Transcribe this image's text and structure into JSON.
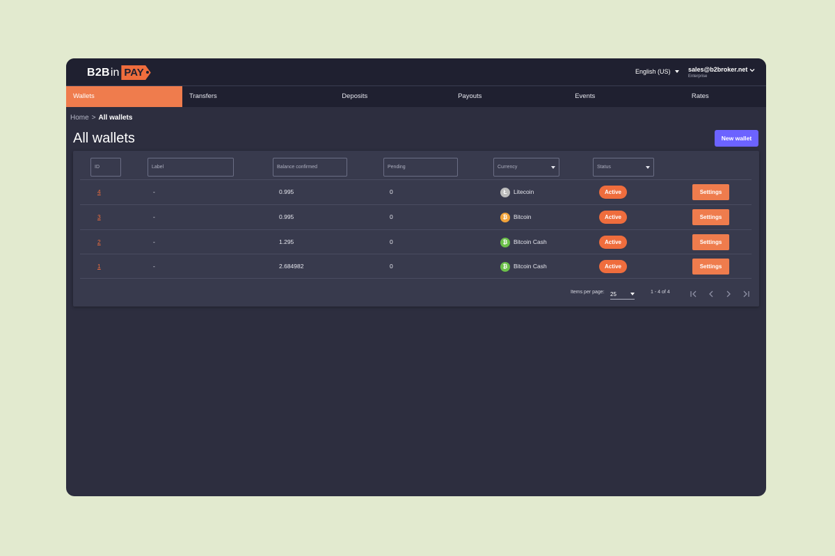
{
  "logo": {
    "part1": "B2B",
    "part2": "in",
    "part3": "PAY"
  },
  "header": {
    "language": "English (US)",
    "user_email": "sales@b2broker.net",
    "user_role": "Enterprise"
  },
  "nav": {
    "items": [
      {
        "label": "Wallets",
        "active": true
      },
      {
        "label": "Transfers"
      },
      {
        "label": "Deposits"
      },
      {
        "label": "Payouts"
      },
      {
        "label": "Events"
      },
      {
        "label": "Rates"
      }
    ]
  },
  "breadcrumb": {
    "home": "Home",
    "separator": ">",
    "current": "All wallets"
  },
  "page": {
    "title": "All wallets",
    "new_wallet_label": "New wallet"
  },
  "filters": {
    "id": "ID",
    "label": "Label",
    "balance": "Balance confirmed",
    "pending": "Pending",
    "currency": "Currency",
    "status": "Status"
  },
  "rows": [
    {
      "id": "4",
      "label": "-",
      "balance": "0.995",
      "pending": "0",
      "currency": "Litecoin",
      "currency_icon": "litecoin-icon",
      "status": "Active",
      "action": "Settings"
    },
    {
      "id": "3",
      "label": "-",
      "balance": "0.995",
      "pending": "0",
      "currency": "Bitcoin",
      "currency_icon": "bitcoin-icon",
      "status": "Active",
      "action": "Settings"
    },
    {
      "id": "2",
      "label": "-",
      "balance": "1.295",
      "pending": "0",
      "currency": "Bitcoin Cash",
      "currency_icon": "bitcoin-cash-icon",
      "status": "Active",
      "action": "Settings"
    },
    {
      "id": "1",
      "label": "-",
      "balance": "2.684982",
      "pending": "0",
      "currency": "Bitcoin Cash",
      "currency_icon": "bitcoin-cash-icon",
      "status": "Active",
      "action": "Settings"
    }
  ],
  "pagination": {
    "items_per_page_label": "Items per page:",
    "items_per_page": "25",
    "range": "1 - 4 of 4"
  },
  "colors": {
    "accent": "#ef6d3d",
    "primary_button": "#6c63ff",
    "background": "#2d2e3f",
    "header": "#1f2030",
    "litecoin": "#bdbdbd",
    "bitcoin": "#f2a33a",
    "bitcoin_cash": "#6cc04a"
  }
}
